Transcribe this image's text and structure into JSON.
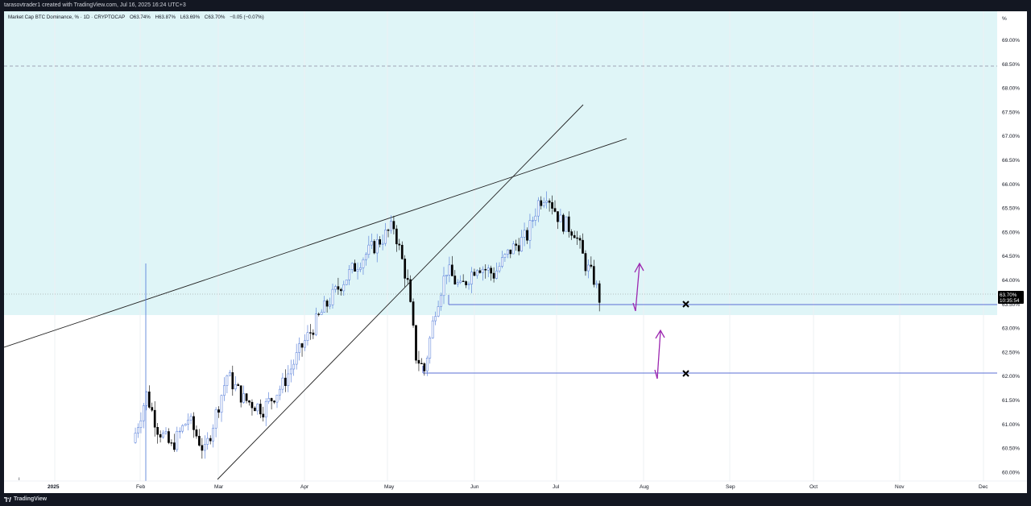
{
  "header": {
    "attribution": "tarasovtrader1 created with TradingView.com, Jul 16, 2025 16:24 UTC+3"
  },
  "legend": {
    "symbol": "Market Cap BTC Dominance, % · 1D · CRYPTOCAP",
    "open": "O63.74%",
    "high": "H63.87%",
    "low": "L63.69%",
    "close": "C63.70%",
    "change": "−0.05 (−0.07%)"
  },
  "price_axis": {
    "unit_label": "%",
    "ticks": [
      "69.00%",
      "68.50%",
      "68.00%",
      "67.50%",
      "67.00%",
      "66.50%",
      "66.00%",
      "65.50%",
      "65.00%",
      "64.50%",
      "64.00%",
      "63.50%",
      "63.00%",
      "62.50%",
      "62.00%",
      "61.50%",
      "61.00%",
      "60.50%",
      "60.00%"
    ],
    "current_price": "63.70%",
    "countdown": "10:35:54"
  },
  "time_axis": {
    "labels": [
      "2025",
      "Feb",
      "Mar",
      "Apr",
      "May",
      "Jun",
      "Jul",
      "Aug",
      "Sep",
      "Oct",
      "Nov",
      "Dec"
    ]
  },
  "footer": {
    "brand": "TradingView"
  },
  "colors": {
    "zone_fill": "#dff5f7",
    "candle_up": "#4a74d6",
    "candle_down": "#000000",
    "arrow": "#9c27b0",
    "horizontal_level": "#5b6fd6",
    "price_label_bg": "#000000"
  },
  "chart_data": {
    "type": "candlestick",
    "interval": "1D",
    "y_unit": "%",
    "ylim": [
      59.9,
      69.6
    ],
    "horizontal_levels": [
      63.5,
      62.05
    ],
    "highlighted_zone": [
      63.28,
      69.6
    ],
    "dashed_level": 68.45,
    "targets_x": [
      63.5,
      62.05
    ],
    "close_path": [
      {
        "date": "2025-01-30",
        "close": 60.9
      },
      {
        "date": "2025-02-03",
        "close": 61.7
      },
      {
        "date": "2025-02-07",
        "close": 61.0
      },
      {
        "date": "2025-02-12",
        "close": 60.6
      },
      {
        "date": "2025-02-18",
        "close": 61.2
      },
      {
        "date": "2025-02-24",
        "close": 60.5
      },
      {
        "date": "2025-02-28",
        "close": 61.3
      },
      {
        "date": "2025-03-04",
        "close": 62.1
      },
      {
        "date": "2025-03-10",
        "close": 61.6
      },
      {
        "date": "2025-03-17",
        "close": 61.4
      },
      {
        "date": "2025-03-24",
        "close": 61.9
      },
      {
        "date": "2025-03-31",
        "close": 62.7
      },
      {
        "date": "2025-04-07",
        "close": 63.4
      },
      {
        "date": "2025-04-14",
        "close": 64.0
      },
      {
        "date": "2025-04-21",
        "close": 64.5
      },
      {
        "date": "2025-04-28",
        "close": 64.9
      },
      {
        "date": "2025-05-03",
        "close": 65.2
      },
      {
        "date": "2025-05-08",
        "close": 64.0
      },
      {
        "date": "2025-05-11",
        "close": 62.5
      },
      {
        "date": "2025-05-14",
        "close": 62.2
      },
      {
        "date": "2025-05-18",
        "close": 63.5
      },
      {
        "date": "2025-05-22",
        "close": 64.3
      },
      {
        "date": "2025-05-27",
        "close": 63.9
      },
      {
        "date": "2025-06-02",
        "close": 64.4
      },
      {
        "date": "2025-06-08",
        "close": 64.2
      },
      {
        "date": "2025-06-14",
        "close": 64.7
      },
      {
        "date": "2025-06-20",
        "close": 65.0
      },
      {
        "date": "2025-06-24",
        "close": 65.7
      },
      {
        "date": "2025-06-27",
        "close": 65.9
      },
      {
        "date": "2025-07-02",
        "close": 65.3
      },
      {
        "date": "2025-07-07",
        "close": 65.1
      },
      {
        "date": "2025-07-11",
        "close": 64.4
      },
      {
        "date": "2025-07-14",
        "close": 64.1
      },
      {
        "date": "2025-07-16",
        "close": 63.7
      }
    ]
  }
}
